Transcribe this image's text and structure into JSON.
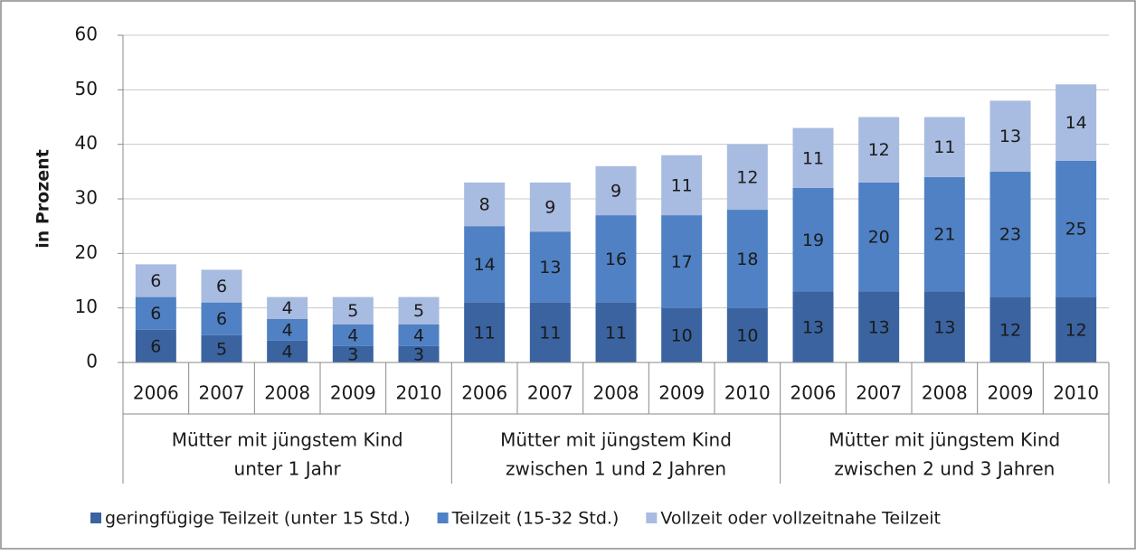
{
  "chart_data": {
    "type": "stacked_bar",
    "ylabel": "in Prozent",
    "groups": [
      {
        "lines": [
          "Mütter mit jüngstem Kind",
          "unter 1 Jahr"
        ],
        "categories": [
          "2006",
          "2007",
          "2008",
          "2009",
          "2010"
        ]
      },
      {
        "lines": [
          "Mütter mit jüngstem Kind",
          "zwischen 1 und 2 Jahren"
        ],
        "categories": [
          "2006",
          "2007",
          "2008",
          "2009",
          "2010"
        ]
      },
      {
        "lines": [
          "Mütter mit jüngstem Kind",
          "zwischen 2 und 3 Jahren"
        ],
        "categories": [
          "2006",
          "2007",
          "2008",
          "2009",
          "2010"
        ]
      }
    ],
    "series": [
      {
        "name": "geringfügige Teilzeit (unter 15 Std.)",
        "color": "#3a63a0",
        "values": [
          6,
          5,
          4,
          3,
          3,
          11,
          11,
          11,
          10,
          10,
          13,
          13,
          13,
          12,
          12
        ]
      },
      {
        "name": "Teilzeit (15-32 Std.)",
        "color": "#4f81c4",
        "values": [
          6,
          6,
          4,
          4,
          4,
          14,
          13,
          16,
          17,
          18,
          19,
          20,
          21,
          23,
          25
        ]
      },
      {
        "name": "Vollzeit oder vollzeitnahe Teilzeit",
        "color": "#a8bbe0",
        "values": [
          6,
          6,
          4,
          5,
          5,
          8,
          9,
          9,
          11,
          12,
          11,
          12,
          11,
          13,
          14
        ]
      }
    ],
    "ylim": [
      0,
      60
    ],
    "yticks": [
      0,
      10,
      20,
      30,
      40,
      50,
      60
    ],
    "grid": true,
    "legend": "bottom"
  }
}
